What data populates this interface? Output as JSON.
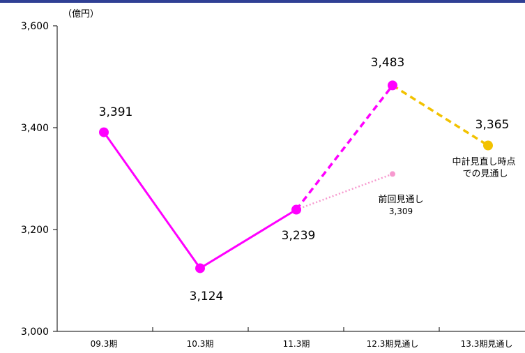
{
  "chart_data": {
    "type": "line",
    "unit_label": "（億円）",
    "categories": [
      "09.3期",
      "10.3期",
      "11.3期",
      "12.3期見通し",
      "13.3期見通し"
    ],
    "ylim": [
      3000,
      3600
    ],
    "y_ticks": [
      "3,000",
      "3,200",
      "3,400",
      "3,600"
    ],
    "series": [
      {
        "values": [
          3391,
          3124,
          3239,
          null,
          null
        ],
        "color": "#ff00ff",
        "style": "solid"
      },
      {
        "values": [
          null,
          null,
          3239,
          3483,
          null
        ],
        "color": "#ff00ff",
        "style": "dashed"
      },
      {
        "values": [
          null,
          null,
          3239,
          3309,
          null
        ],
        "color": "#f799cf",
        "style": "dotted"
      },
      {
        "values": [
          null,
          null,
          null,
          3483,
          3365
        ],
        "color": "#f2c200",
        "style": "dashed"
      }
    ],
    "data_labels": [
      "3,391",
      "3,124",
      "3,239",
      "3,483",
      "3,365"
    ],
    "annotations": {
      "previous_forecast_title": "前回見通し",
      "previous_forecast_value": "3,309",
      "midterm_line1": "中計見直し時点",
      "midterm_line2": "での見通し"
    },
    "grid": false
  }
}
